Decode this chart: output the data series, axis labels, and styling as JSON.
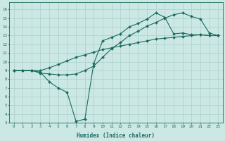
{
  "xlabel": "Humidex (Indice chaleur)",
  "bg_color": "#cce8e5",
  "line_color": "#1a6b5e",
  "grid_color": "#aacfcb",
  "xlim": [
    -0.5,
    23.5
  ],
  "ylim": [
    3,
    16.8
  ],
  "xticks": [
    0,
    1,
    2,
    3,
    4,
    5,
    6,
    7,
    8,
    9,
    10,
    11,
    12,
    13,
    14,
    15,
    16,
    17,
    18,
    19,
    20,
    21,
    22,
    23
  ],
  "yticks": [
    3,
    4,
    5,
    6,
    7,
    8,
    9,
    10,
    11,
    12,
    13,
    14,
    15,
    16
  ],
  "line1_x": [
    0,
    1,
    2,
    3,
    4,
    5,
    6,
    7,
    8,
    9,
    10,
    11,
    12,
    13,
    14,
    15,
    16,
    17,
    18,
    19,
    20,
    21,
    22,
    23
  ],
  "line1_y": [
    9.0,
    9.0,
    9.0,
    9.0,
    9.3,
    9.7,
    10.1,
    10.5,
    10.8,
    11.1,
    11.4,
    11.6,
    11.8,
    12.0,
    12.2,
    12.4,
    12.6,
    12.7,
    12.8,
    12.9,
    13.0,
    13.1,
    13.0,
    13.0
  ],
  "line2_x": [
    0,
    1,
    2,
    3,
    4,
    5,
    6,
    7,
    8,
    9,
    10,
    11,
    12,
    13,
    14,
    15,
    16,
    17,
    18,
    19,
    20,
    21,
    22,
    23
  ],
  "line2_y": [
    9.0,
    9.0,
    9.0,
    8.7,
    8.6,
    8.5,
    8.5,
    8.6,
    9.0,
    9.5,
    10.5,
    11.5,
    12.2,
    13.0,
    13.5,
    14.1,
    14.5,
    15.0,
    15.4,
    15.6,
    15.2,
    14.9,
    13.3,
    13.0
  ],
  "line3_x": [
    0,
    1,
    2,
    3,
    4,
    5,
    6,
    7,
    8,
    9,
    10,
    11,
    12,
    13,
    14,
    15,
    16,
    17,
    18,
    19,
    20,
    21,
    22,
    23
  ],
  "line3_y": [
    9.0,
    9.0,
    9.0,
    8.8,
    7.7,
    7.0,
    6.5,
    3.2,
    3.4,
    9.8,
    12.4,
    12.8,
    13.2,
    14.0,
    14.4,
    14.9,
    15.6,
    15.1,
    13.2,
    13.3,
    13.1,
    13.1,
    13.0,
    13.0
  ]
}
